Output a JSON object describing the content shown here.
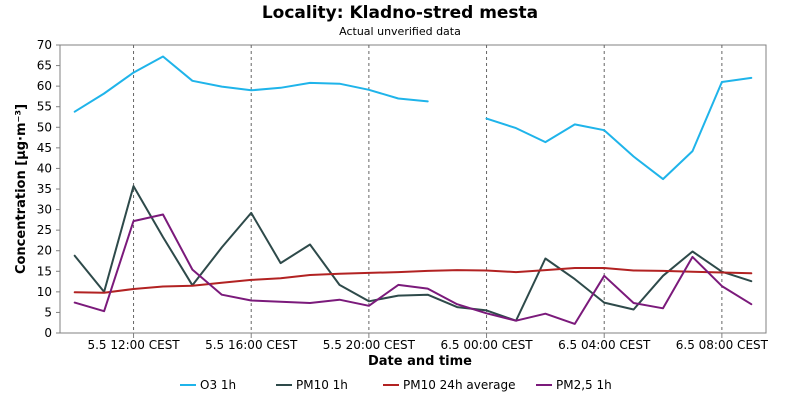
{
  "chart_data": {
    "type": "line",
    "title": "Locality: Kladno-stred mesta",
    "subtitle": "Actual unverified data",
    "xlabel": "Date and time",
    "ylabel": "Concentration [µg·m⁻³]",
    "ylim": [
      0,
      70
    ],
    "yticks": [
      0,
      5,
      10,
      15,
      20,
      25,
      30,
      35,
      40,
      45,
      50,
      55,
      60,
      65,
      70
    ],
    "x_hours": [
      10,
      11,
      12,
      13,
      14,
      15,
      16,
      17,
      18,
      19,
      20,
      21,
      22,
      23,
      24,
      25,
      26,
      27,
      28,
      29,
      30,
      31,
      32,
      33
    ],
    "x_range_hours": [
      9.5,
      33.5
    ],
    "xticks": [
      {
        "hour": 12,
        "label": "5.5 12:00 CEST"
      },
      {
        "hour": 16,
        "label": "5.5 16:00 CEST"
      },
      {
        "hour": 20,
        "label": "5.5 20:00 CEST"
      },
      {
        "hour": 24,
        "label": "6.5 00:00 CEST"
      },
      {
        "hour": 28,
        "label": "6.5 04:00 CEST"
      },
      {
        "hour": 32,
        "label": "6.5 08:00 CEST"
      }
    ],
    "grid": "vertical dashed at x ticks",
    "legend_position": "bottom",
    "series": [
      {
        "name": "O3 1h",
        "color": "#1fb4ea",
        "values": [
          53.8,
          58.2,
          63.3,
          67.2,
          61.3,
          59.9,
          59.0,
          59.6,
          60.8,
          60.6,
          59.1,
          57.0,
          56.3,
          null,
          52.1,
          49.8,
          46.4,
          50.7,
          49.3,
          42.9,
          37.4,
          44.2,
          61.0,
          62.0
        ]
      },
      {
        "name": "PM10 1h",
        "color": "#2e4a4a",
        "values": [
          18.8,
          10.0,
          35.7,
          23.3,
          11.6,
          20.8,
          29.2,
          17.0,
          21.5,
          11.7,
          7.7,
          9.1,
          9.3,
          6.3,
          5.5,
          3.0,
          18.1,
          13.1,
          7.4,
          5.7,
          13.9,
          19.8,
          14.9,
          12.6
        ]
      },
      {
        "name": "PM10 24h average",
        "color": "#b22222",
        "values": [
          9.9,
          9.8,
          10.7,
          11.3,
          11.5,
          12.2,
          12.9,
          13.3,
          14.1,
          14.4,
          14.6,
          14.8,
          15.1,
          15.3,
          15.2,
          14.8,
          15.3,
          15.8,
          15.8,
          15.2,
          15.1,
          14.9,
          14.7,
          14.5
        ]
      },
      {
        "name": "PM2,5 1h",
        "color": "#7b1a7b",
        "values": [
          7.4,
          5.3,
          27.2,
          28.8,
          15.4,
          9.3,
          7.9,
          7.6,
          7.3,
          8.1,
          6.6,
          11.7,
          10.8,
          7.0,
          4.8,
          3.0,
          4.7,
          2.2,
          13.9,
          7.3,
          6.0,
          18.5,
          11.4,
          7.0
        ]
      }
    ]
  }
}
